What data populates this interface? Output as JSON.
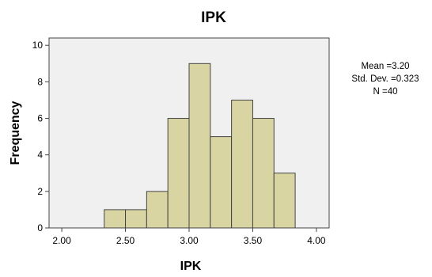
{
  "chart_data": {
    "type": "bar",
    "title": "IPK",
    "xlabel": "IPK",
    "ylabel": "Frequency",
    "bins": [
      {
        "start": 2.3333,
        "end": 2.5,
        "count": 1
      },
      {
        "start": 2.5,
        "end": 2.6667,
        "count": 1
      },
      {
        "start": 2.6667,
        "end": 2.8333,
        "count": 2
      },
      {
        "start": 2.8333,
        "end": 3.0,
        "count": 6
      },
      {
        "start": 3.0,
        "end": 3.1667,
        "count": 9
      },
      {
        "start": 3.1667,
        "end": 3.3333,
        "count": 5
      },
      {
        "start": 3.3333,
        "end": 3.5,
        "count": 7
      },
      {
        "start": 3.5,
        "end": 3.6667,
        "count": 6
      },
      {
        "start": 3.6667,
        "end": 3.8333,
        "count": 3
      }
    ],
    "xlim": [
      1.9,
      4.1
    ],
    "ylim": [
      0,
      10.4
    ],
    "xticks": [
      2.0,
      2.5,
      3.0,
      3.5,
      4.0
    ],
    "xtick_labels": [
      "2.00",
      "2.50",
      "3.00",
      "3.50",
      "4.00"
    ],
    "yticks": [
      0,
      2,
      4,
      6,
      8,
      10
    ],
    "ytick_labels": [
      "0",
      "2",
      "4",
      "6",
      "8",
      "10"
    ],
    "grid": false,
    "colors": {
      "bar_fill": "#d8d5a3",
      "bar_stroke": "#444444",
      "plot_background": "#f0f0f0"
    },
    "stats": {
      "mean": "Mean =3.20",
      "std_dev": "Std. Dev. =0.323",
      "n": "N =40"
    }
  }
}
